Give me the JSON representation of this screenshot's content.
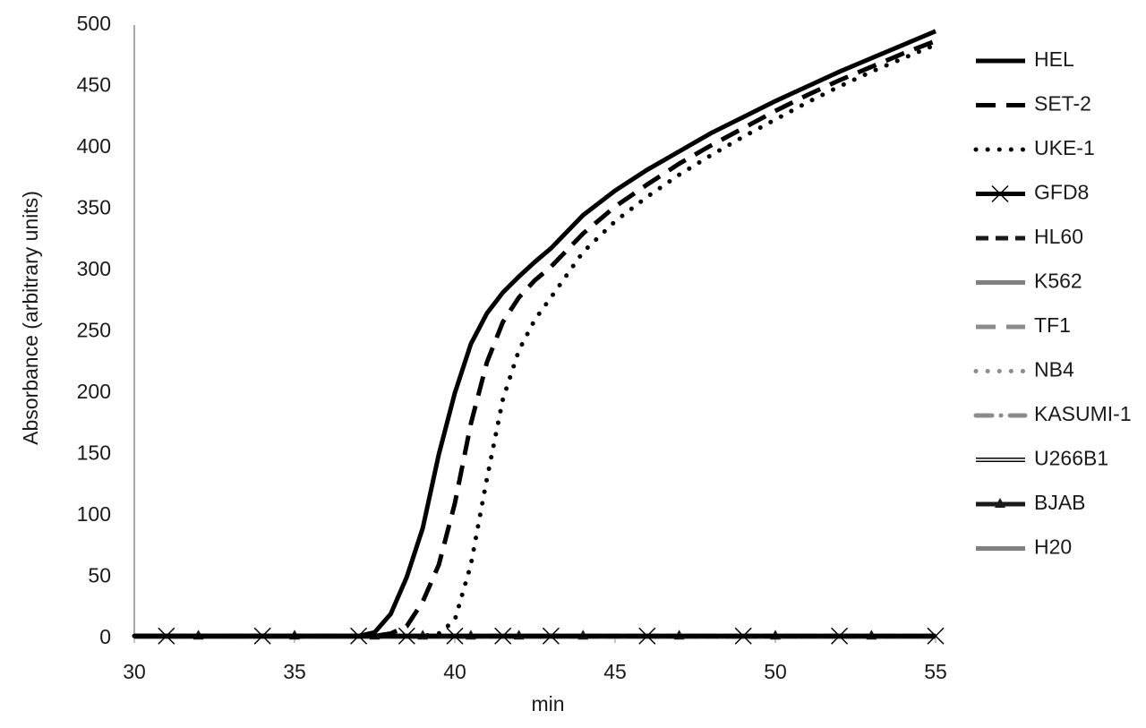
{
  "chart_data": {
    "type": "line",
    "x_label": "min",
    "y_label": "Absorbance (arbitrary units)",
    "x": [
      30,
      31,
      32,
      33,
      34,
      35,
      36,
      37,
      37.5,
      38,
      38.5,
      39,
      39.5,
      40,
      40.5,
      41,
      41.5,
      42,
      42.5,
      43,
      44,
      45,
      46,
      47,
      48,
      49,
      50,
      51,
      52,
      53,
      54,
      55
    ],
    "xlim": [
      30,
      55
    ],
    "xticks": [
      30,
      35,
      40,
      45,
      50,
      55
    ],
    "ylim": [
      0,
      500
    ],
    "yticks": [
      0,
      50,
      100,
      150,
      200,
      250,
      300,
      350,
      400,
      450,
      500
    ],
    "grid": false,
    "legend": "right",
    "series": [
      {
        "name": "HEL",
        "color": "#000000",
        "dash": "solid",
        "values": [
          2,
          2,
          2,
          2,
          2,
          2,
          2,
          2,
          5,
          20,
          50,
          90,
          150,
          200,
          240,
          265,
          282,
          295,
          307,
          318,
          345,
          365,
          382,
          397,
          412,
          425,
          438,
          450,
          462,
          473,
          484,
          495
        ]
      },
      {
        "name": "SET-2",
        "color": "#000000",
        "dash": "longdash",
        "values": [
          2,
          2,
          2,
          2,
          2,
          2,
          2,
          2,
          2,
          4,
          10,
          30,
          60,
          110,
          175,
          225,
          258,
          278,
          292,
          303,
          330,
          352,
          370,
          387,
          402,
          416,
          430,
          443,
          455,
          466,
          477,
          487
        ]
      },
      {
        "name": "UKE-1",
        "color": "#000000",
        "dash": "dot",
        "values": [
          2,
          2,
          2,
          2,
          2,
          2,
          2,
          2,
          2,
          2,
          2,
          2,
          4,
          15,
          60,
          130,
          195,
          235,
          260,
          278,
          315,
          340,
          360,
          378,
          394,
          409,
          423,
          437,
          450,
          462,
          473,
          484
        ]
      },
      {
        "name": "GFD8",
        "color": "#000000",
        "dash": "solid",
        "marker": "x",
        "values": [
          2,
          2,
          2,
          2,
          2,
          2,
          2,
          2,
          2,
          2,
          2,
          2,
          2,
          2,
          2,
          2,
          2,
          2,
          2,
          2,
          2,
          2,
          2,
          2,
          2,
          2,
          2,
          2,
          2,
          2,
          2,
          2
        ]
      },
      {
        "name": "HL60",
        "color": "#1a1a1a",
        "dash": "dash",
        "values": [
          2,
          2,
          2,
          2,
          2,
          2,
          2,
          2,
          2,
          2,
          2,
          2,
          2,
          2,
          2,
          2,
          2,
          2,
          2,
          2,
          2,
          2,
          2,
          2,
          2,
          2,
          2,
          2,
          2,
          2,
          2,
          2
        ]
      },
      {
        "name": "K562",
        "color": "#7f7f7f",
        "dash": "solid",
        "values": [
          2,
          2,
          2,
          2,
          2,
          2,
          2,
          2,
          2,
          2,
          2,
          2,
          2,
          2,
          2,
          2,
          2,
          2,
          2,
          2,
          2,
          2,
          2,
          2,
          2,
          2,
          2,
          2,
          2,
          2,
          2,
          2
        ]
      },
      {
        "name": "TF1",
        "color": "#8c8c8c",
        "dash": "longdash",
        "values": [
          2,
          2,
          2,
          2,
          2,
          2,
          2,
          2,
          2,
          2,
          2,
          2,
          2,
          2,
          2,
          2,
          2,
          2,
          2,
          2,
          2,
          2,
          2,
          2,
          2,
          2,
          2,
          2,
          2,
          2,
          2,
          2
        ]
      },
      {
        "name": "NB4",
        "color": "#8c8c8c",
        "dash": "dot",
        "values": [
          2,
          2,
          2,
          2,
          2,
          2,
          2,
          2,
          2,
          2,
          2,
          2,
          2,
          2,
          2,
          2,
          2,
          2,
          2,
          2,
          2,
          2,
          2,
          2,
          2,
          2,
          2,
          2,
          2,
          2,
          2,
          2
        ]
      },
      {
        "name": "KASUMI-1",
        "color": "#8c8c8c",
        "dash": "dashdot",
        "values": [
          2,
          2,
          2,
          2,
          2,
          2,
          2,
          2,
          2,
          2,
          2,
          2,
          2,
          2,
          2,
          2,
          2,
          2,
          2,
          2,
          2,
          2,
          2,
          2,
          2,
          2,
          2,
          2,
          2,
          2,
          2,
          2
        ]
      },
      {
        "name": "U266B1",
        "color": "#000000",
        "dash": "double",
        "values": [
          2,
          2,
          2,
          2,
          2,
          2,
          2,
          2,
          2,
          2,
          2,
          2,
          2,
          2,
          2,
          2,
          2,
          2,
          2,
          2,
          2,
          2,
          2,
          2,
          2,
          2,
          2,
          2,
          2,
          2,
          2,
          2
        ]
      },
      {
        "name": "BJAB",
        "color": "#1a1a1a",
        "dash": "solid",
        "marker": "triangle",
        "values": [
          2,
          2,
          2,
          2,
          2,
          2,
          2,
          2,
          2,
          2,
          2,
          2,
          2,
          2,
          2,
          2,
          2,
          2,
          2,
          2,
          2,
          2,
          2,
          2,
          2,
          2,
          2,
          2,
          2,
          2,
          2,
          2
        ]
      },
      {
        "name": "H20",
        "color": "#7f7f7f",
        "dash": "solid",
        "values": [
          2,
          2,
          2,
          2,
          2,
          2,
          2,
          2,
          2,
          2,
          2,
          2,
          2,
          2,
          2,
          2,
          2,
          2,
          2,
          2,
          2,
          2,
          2,
          2,
          2,
          2,
          2,
          2,
          2,
          2,
          2,
          2
        ]
      }
    ]
  }
}
